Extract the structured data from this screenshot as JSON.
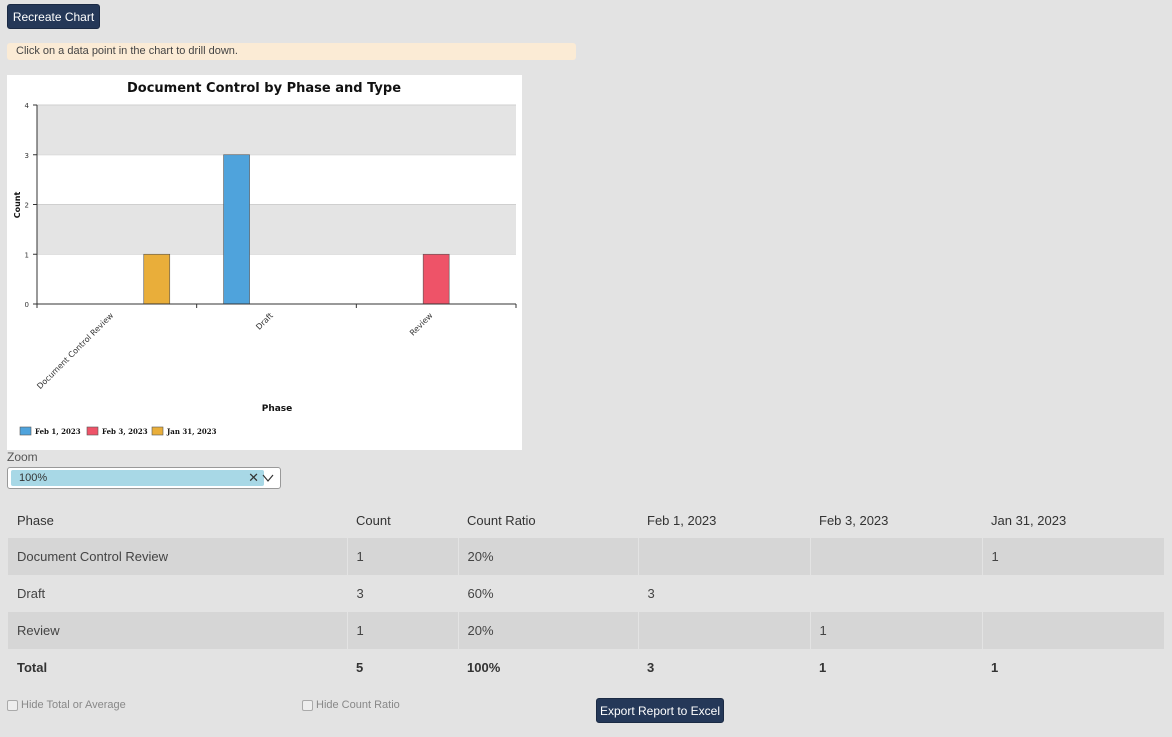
{
  "toolbar": {
    "recreate_label": "Recreate Chart"
  },
  "hint": {
    "text": "Click on a data point in the chart to drill down."
  },
  "chart_data": {
    "type": "bar",
    "title": "Document Control by Phase and Type",
    "xlabel": "Phase",
    "ylabel": "Count",
    "categories": [
      "Document Control Review",
      "Draft",
      "Review"
    ],
    "series": [
      {
        "name": "Feb 1, 2023",
        "color": "#4fa3dc",
        "values": [
          0,
          3,
          0
        ]
      },
      {
        "name": "Feb 3, 2023",
        "color": "#ee5368",
        "values": [
          0,
          0,
          1
        ]
      },
      {
        "name": "Jan 31, 2023",
        "color": "#e9ae3a",
        "values": [
          1,
          0,
          0
        ]
      }
    ],
    "ylim": [
      0,
      4
    ],
    "yticks": [
      "0",
      "1",
      "2",
      "3",
      "4"
    ],
    "grid": true,
    "legend_position": "bottom-left"
  },
  "zoom": {
    "label": "Zoom",
    "value": "100%"
  },
  "report": {
    "headers": [
      "Phase",
      "Count",
      "Count Ratio",
      "Feb 1, 2023",
      "Feb 3, 2023",
      "Jan 31, 2023"
    ],
    "rows": [
      [
        "Document Control Review",
        "1",
        "20%",
        "",
        "",
        "1"
      ],
      [
        "Draft",
        "3",
        "60%",
        "3",
        "",
        ""
      ],
      [
        "Review",
        "1",
        "20%",
        "",
        "1",
        ""
      ]
    ],
    "total": [
      "Total",
      "5",
      "100%",
      "3",
      "1",
      "1"
    ]
  },
  "options": {
    "hide_total_label": "Hide Total or Average",
    "hide_ratio_label": "Hide Count Ratio",
    "export_label": "Export Report to Excel"
  }
}
